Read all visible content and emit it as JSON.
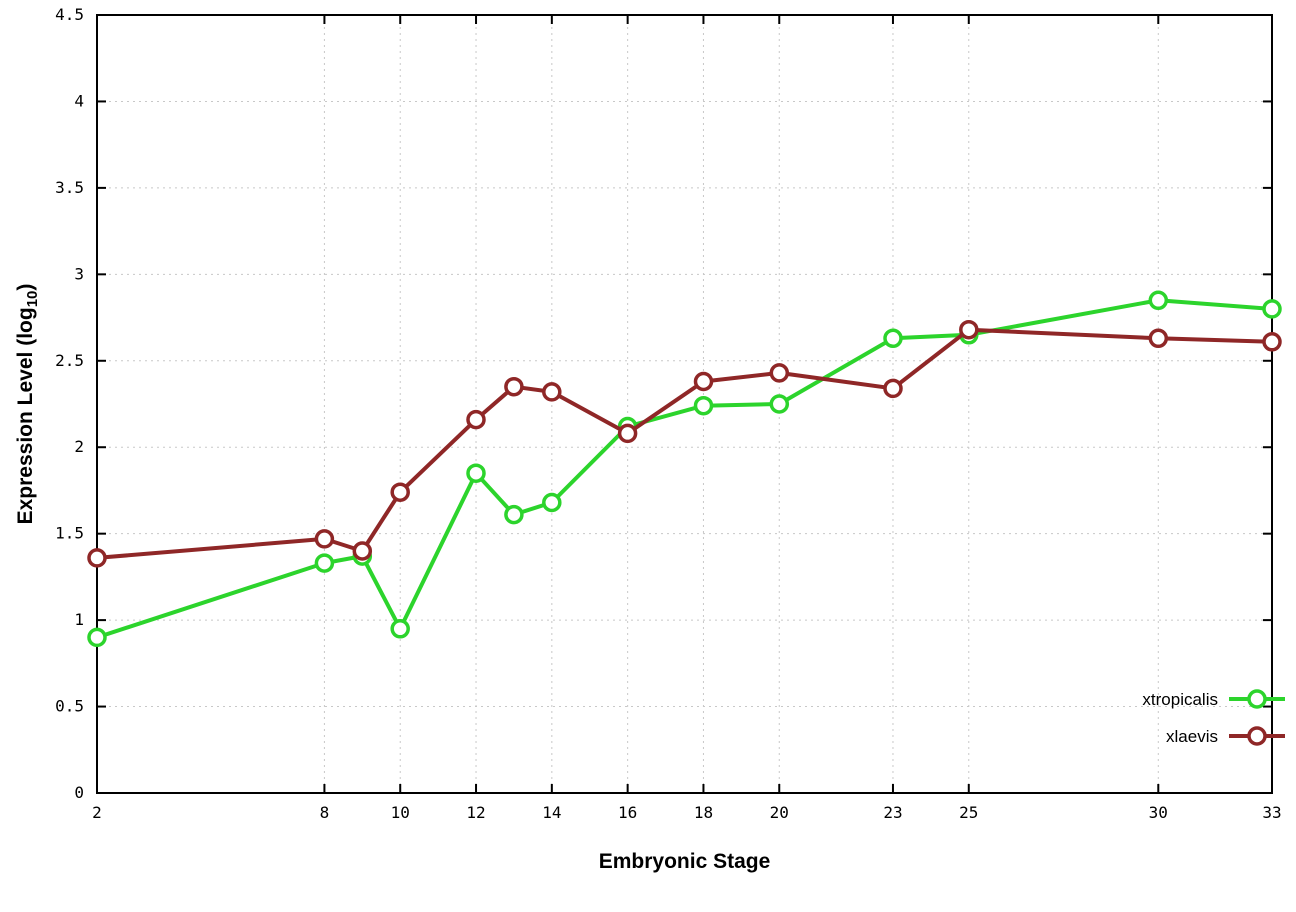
{
  "chart_data": {
    "type": "line",
    "title": "",
    "xlabel": "Embryonic Stage",
    "ylabel": "Expression Level (log10)",
    "ylabel_parts": {
      "prefix": "Expression Level (log",
      "sub": "10",
      "suffix": ")"
    },
    "x": [
      2,
      8,
      9,
      10,
      12,
      13,
      14,
      16,
      18,
      20,
      23,
      25,
      30,
      33
    ],
    "series": [
      {
        "name": "xtropicalis",
        "color": "#2cd42c",
        "values": [
          0.9,
          1.33,
          1.37,
          0.95,
          1.85,
          1.61,
          1.68,
          2.12,
          2.24,
          2.25,
          2.63,
          2.65,
          2.85,
          2.8
        ]
      },
      {
        "name": "xlaevis",
        "color": "#8f2727",
        "values": [
          1.36,
          1.47,
          1.4,
          1.74,
          2.16,
          2.35,
          2.32,
          2.08,
          2.38,
          2.43,
          2.34,
          2.68,
          2.63,
          2.61
        ]
      }
    ],
    "xlim": [
      2,
      33
    ],
    "ylim": [
      0,
      4.5
    ],
    "xticks": [
      2,
      8,
      10,
      12,
      14,
      16,
      18,
      20,
      23,
      25,
      30,
      33
    ],
    "xtick_labels": [
      "2",
      "8",
      "10",
      "12",
      "14",
      "16",
      "18",
      "20",
      "23",
      "25",
      "30",
      "33"
    ],
    "yticks": [
      0,
      0.5,
      1,
      1.5,
      2,
      2.5,
      3,
      3.5,
      4,
      4.5
    ],
    "ytick_labels": [
      "0",
      "0.5",
      "1",
      "1.5",
      "2",
      "2.5",
      "3",
      "3.5",
      "4",
      "4.5"
    ],
    "grid": true,
    "grid_color": "#c8c8c8",
    "border_color": "#000000",
    "background": "#ffffff",
    "marker": "open-circle",
    "legend_position": "bottom-right"
  }
}
